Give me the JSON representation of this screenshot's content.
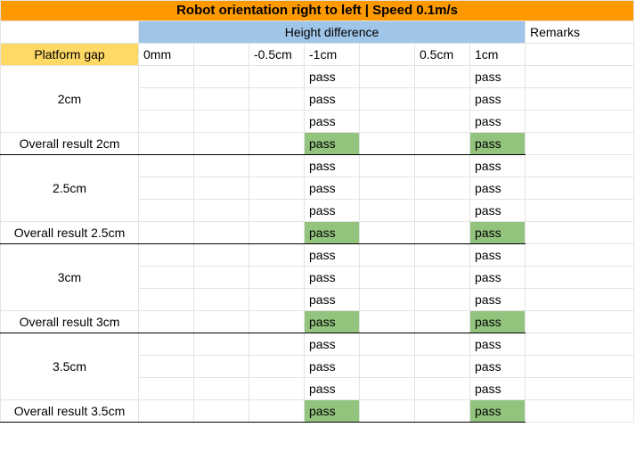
{
  "title": "Robot orientation right to left | Speed 0.1m/s",
  "height_difference_label": "Height difference",
  "remarks_label": "Remarks",
  "platform_gap_label": "Platform gap",
  "height_columns": [
    "0mm",
    "",
    "-0.5cm",
    "-1cm",
    "",
    "0.5cm",
    "1cm"
  ],
  "colors": {
    "title_bg": "#ff9900",
    "height_bg": "#9fc5e8",
    "platform_bg": "#ffd966",
    "pass_bg": "#93c47d"
  },
  "groups": [
    {
      "gap": "2cm",
      "rows": [
        [
          "",
          "",
          "",
          "pass",
          "",
          "",
          "pass"
        ],
        [
          "",
          "",
          "",
          "pass",
          "",
          "",
          "pass"
        ],
        [
          "",
          "",
          "",
          "pass",
          "",
          "",
          "pass"
        ]
      ],
      "overall_label": "Overall result 2cm",
      "overall": [
        "",
        "",
        "",
        "pass",
        "",
        "",
        "pass"
      ]
    },
    {
      "gap": "2.5cm",
      "rows": [
        [
          "",
          "",
          "",
          "pass",
          "",
          "",
          "pass"
        ],
        [
          "",
          "",
          "",
          "pass",
          "",
          "",
          "pass"
        ],
        [
          "",
          "",
          "",
          "pass",
          "",
          "",
          "pass"
        ]
      ],
      "overall_label": "Overall result 2.5cm",
      "overall": [
        "",
        "",
        "",
        "pass",
        "",
        "",
        "pass"
      ]
    },
    {
      "gap": "3cm",
      "rows": [
        [
          "",
          "",
          "",
          "pass",
          "",
          "",
          "pass"
        ],
        [
          "",
          "",
          "",
          "pass",
          "",
          "",
          "pass"
        ],
        [
          "",
          "",
          "",
          "pass",
          "",
          "",
          "pass"
        ]
      ],
      "overall_label": "Overall result 3cm",
      "overall": [
        "",
        "",
        "",
        "pass",
        "",
        "",
        "pass"
      ]
    },
    {
      "gap": "3.5cm",
      "rows": [
        [
          "",
          "",
          "",
          "pass",
          "",
          "",
          "pass"
        ],
        [
          "",
          "",
          "",
          "pass",
          "",
          "",
          "pass"
        ],
        [
          "",
          "",
          "",
          "pass",
          "",
          "",
          "pass"
        ]
      ],
      "overall_label": "Overall result 3.5cm",
      "overall": [
        "",
        "",
        "",
        "pass",
        "",
        "",
        "pass"
      ]
    }
  ]
}
